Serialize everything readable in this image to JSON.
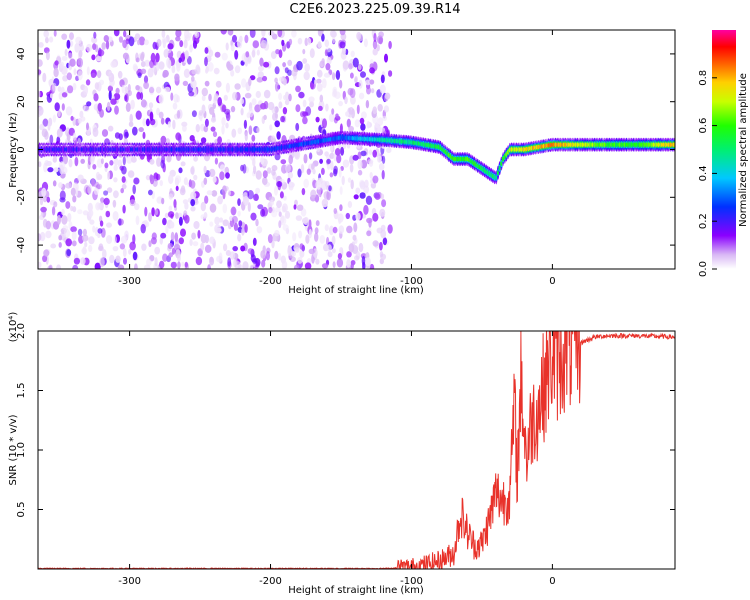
{
  "title": "C2E6.2023.225.09.39.R14",
  "chart_data": [
    {
      "type": "heatmap",
      "xlabel": "Height of straight line (km)",
      "ylabel": "Frequency (Hz)",
      "xlim": [
        -365,
        87
      ],
      "ylim": [
        -50,
        50
      ],
      "x_ticks": [
        -300,
        -200,
        -100,
        0
      ],
      "x_tick_labels": [
        "-300",
        "-200",
        "-100",
        "0"
      ],
      "y_ticks": [
        -40,
        -20,
        0,
        20,
        40
      ],
      "y_tick_labels": [
        "-40",
        "-20",
        "0",
        "20",
        "40"
      ],
      "colorbar": {
        "label": "Normalized spectral amplitude",
        "range": [
          0,
          1
        ],
        "ticks": [
          0.0,
          0.2,
          0.4,
          0.6,
          0.8
        ],
        "tick_labels": [
          "0.0",
          "0.2",
          "0.4",
          "0.6",
          "0.8"
        ],
        "colormap": "rainbow (white-violet-blue-cyan-green-yellow-red-magenta)"
      },
      "ridge": {
        "x": [
          -365,
          -300,
          -200,
          -150,
          -120,
          -100,
          -80,
          -70,
          -60,
          -50,
          -40,
          -35,
          -30,
          -20,
          -10,
          0,
          20,
          40,
          60,
          87
        ],
        "y": [
          0,
          0,
          0,
          5,
          4,
          3,
          1,
          -4,
          -4,
          -8,
          -12,
          -4,
          0,
          0,
          1,
          2,
          2,
          2,
          2,
          2
        ],
        "amplitude": [
          0.2,
          0.2,
          0.25,
          0.3,
          0.45,
          0.5,
          0.55,
          0.6,
          0.6,
          0.55,
          0.5,
          0.6,
          0.7,
          0.75,
          0.8,
          0.85,
          0.7,
          0.6,
          0.6,
          0.8
        ]
      },
      "noise_region": {
        "x_from": -365,
        "x_to": -115,
        "amplitude": "0.0-0.2"
      }
    },
    {
      "type": "line",
      "xlabel": "Height of straight line (km)",
      "ylabel": "SNR (10 * v/v)",
      "y_multiplier": "(x10⁴)",
      "xlim": [
        -365,
        87
      ],
      "ylim": [
        0,
        2.0
      ],
      "x_ticks": [
        -300,
        -200,
        -100,
        0
      ],
      "x_tick_labels": [
        "-300",
        "-200",
        "-100",
        "0"
      ],
      "y_ticks": [
        0.5,
        1.0,
        1.5,
        2.0
      ],
      "y_tick_labels": [
        "0.5",
        "1.0",
        "1.5",
        "2.0"
      ],
      "color": "#e8322a",
      "series": [
        {
          "x": [
            -365,
            -300,
            -200,
            -120,
            -100,
            -90,
            -80,
            -70,
            -65,
            -60,
            -55,
            -50,
            -45,
            -40,
            -35,
            -30,
            -27,
            -25,
            -22,
            -20,
            -18,
            -15,
            -10,
            -5,
            0,
            5,
            10,
            15,
            20,
            30,
            40,
            60,
            87
          ],
          "y": [
            0.0,
            0.0,
            0.0,
            0.0,
            0.01,
            0.03,
            0.06,
            0.12,
            0.45,
            0.28,
            0.18,
            0.2,
            0.38,
            0.62,
            0.55,
            0.6,
            1.35,
            0.75,
            1.6,
            1.1,
            0.9,
            1.2,
            1.3,
            1.55,
            1.75,
            1.7,
            1.85,
            1.8,
            1.9,
            1.95,
            1.96,
            1.96,
            1.95
          ]
        }
      ]
    }
  ]
}
